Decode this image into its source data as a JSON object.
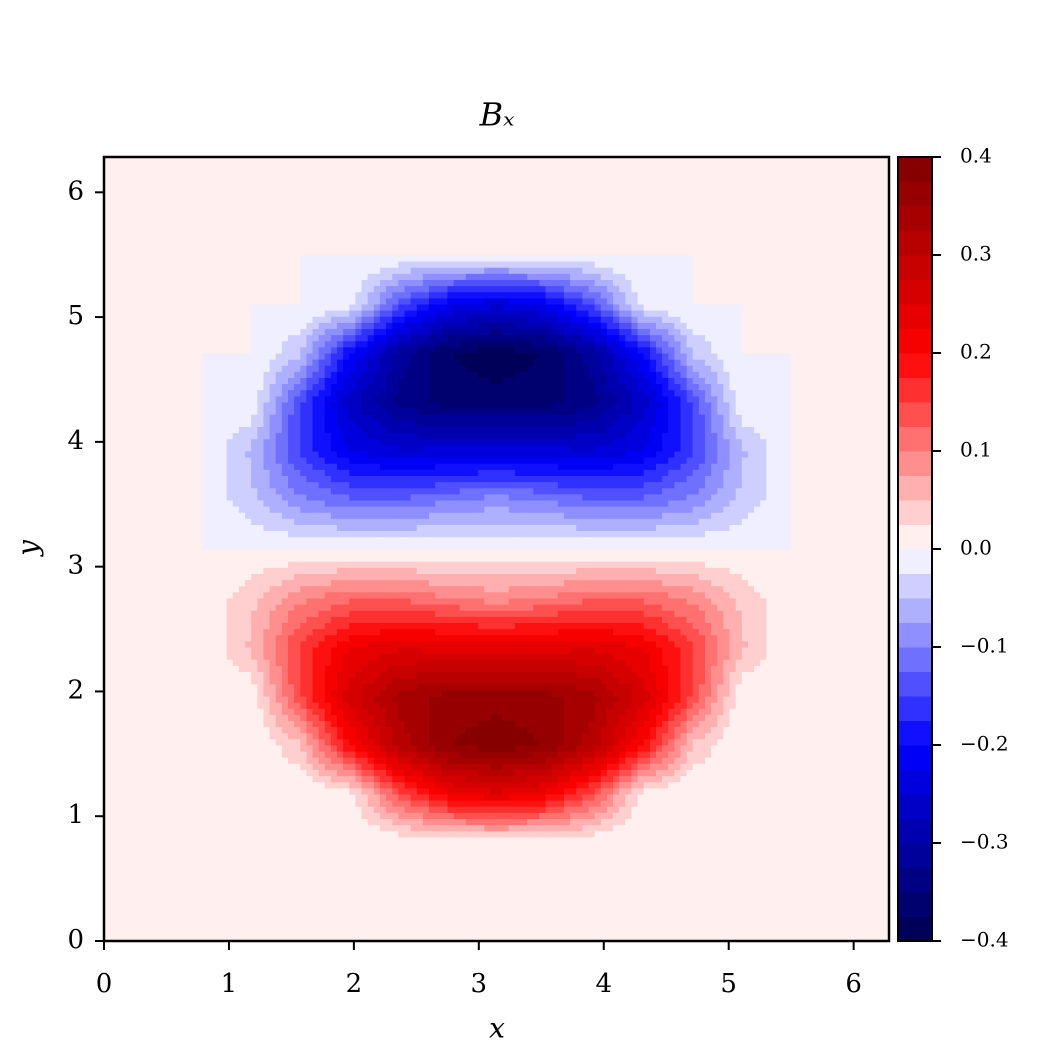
{
  "chart_data": {
    "type": "contour",
    "title": "Bₓ",
    "x_label": "x",
    "y_label": "y",
    "colormap": "seismic",
    "x": [
      0,
      0.393,
      0.785,
      1.178,
      1.571,
      1.963,
      2.356,
      2.749,
      3.142,
      3.534,
      3.927,
      4.32,
      4.712,
      5.105,
      5.498,
      5.89,
      6.283
    ],
    "y": [
      0,
      0.393,
      0.785,
      1.178,
      1.571,
      1.963,
      2.356,
      2.749,
      3.142,
      3.534,
      3.927,
      4.32,
      4.712,
      5.105,
      5.498,
      5.89,
      6.283
    ],
    "z": [
      [
        0,
        0,
        0,
        0,
        0,
        0,
        0,
        0,
        0,
        0,
        0,
        0,
        0,
        0,
        0,
        0,
        0
      ],
      [
        0,
        0,
        0,
        0,
        0,
        0,
        0,
        0,
        0,
        0,
        0,
        0,
        0,
        0,
        0,
        0,
        0
      ],
      [
        0,
        0,
        0,
        0,
        0,
        0,
        0,
        0,
        0,
        0,
        0,
        0,
        0,
        0,
        0,
        0,
        0
      ],
      [
        0,
        0,
        0,
        0,
        0,
        0.007,
        0.135,
        0.218,
        0.246,
        0.218,
        0.135,
        0.007,
        0,
        0,
        0,
        0,
        0
      ],
      [
        0,
        0,
        0,
        0,
        0.045,
        0.197,
        0.309,
        0.373,
        0.392,
        0.373,
        0.309,
        0.197,
        0.045,
        0,
        0,
        0,
        0
      ],
      [
        0,
        0,
        0,
        0.004,
        0.148,
        0.264,
        0.333,
        0.36,
        0.365,
        0.36,
        0.333,
        0.264,
        0.148,
        0.004,
        0,
        0,
        0
      ],
      [
        0,
        0,
        0,
        0.054,
        0.155,
        0.222,
        0.246,
        0.241,
        0.235,
        0.241,
        0.246,
        0.222,
        0.155,
        0.054,
        0,
        0,
        0
      ],
      [
        0,
        0,
        0,
        0.044,
        0.093,
        0.12,
        0.121,
        0.103,
        0.088,
        0.103,
        0.121,
        0.12,
        0.093,
        0.044,
        0,
        0,
        0
      ],
      [
        0,
        0,
        0,
        0,
        0,
        0,
        0,
        0,
        0,
        0,
        0,
        0,
        0,
        0,
        0,
        0,
        0
      ],
      [
        0,
        0,
        0,
        -0.044,
        -0.093,
        -0.12,
        -0.121,
        -0.103,
        -0.088,
        -0.103,
        -0.121,
        -0.12,
        -0.093,
        -0.044,
        0,
        0,
        0
      ],
      [
        0,
        0,
        0,
        -0.054,
        -0.155,
        -0.222,
        -0.246,
        -0.241,
        -0.235,
        -0.241,
        -0.246,
        -0.222,
        -0.155,
        -0.054,
        0,
        0,
        0
      ],
      [
        0,
        0,
        0,
        -0.004,
        -0.148,
        -0.264,
        -0.333,
        -0.36,
        -0.365,
        -0.36,
        -0.333,
        -0.264,
        -0.148,
        -0.004,
        0,
        0,
        0
      ],
      [
        0,
        0,
        0,
        0,
        -0.045,
        -0.197,
        -0.309,
        -0.373,
        -0.392,
        -0.373,
        -0.309,
        -0.197,
        -0.045,
        0,
        0,
        0,
        0
      ],
      [
        0,
        0,
        0,
        0,
        0,
        -0.007,
        -0.135,
        -0.218,
        -0.246,
        -0.218,
        -0.135,
        -0.007,
        0,
        0,
        0,
        0,
        0
      ],
      [
        0,
        0,
        0,
        0,
        0,
        0,
        0,
        0,
        0,
        0,
        0,
        0,
        0,
        0,
        0,
        0,
        0
      ],
      [
        0,
        0,
        0,
        0,
        0,
        0,
        0,
        0,
        0,
        0,
        0,
        0,
        0,
        0,
        0,
        0,
        0
      ],
      [
        0,
        0,
        0,
        0,
        0,
        0,
        0,
        0,
        0,
        0,
        0,
        0,
        0,
        0,
        0,
        0,
        0
      ]
    ],
    "xlim": [
      0,
      6.283
    ],
    "ylim": [
      0,
      6.283
    ],
    "xticks": [
      0,
      1,
      2,
      3,
      4,
      5,
      6
    ],
    "yticks": [
      0,
      1,
      2,
      3,
      4,
      5,
      6
    ],
    "zlim": [
      -0.4,
      0.4
    ],
    "zticks": [
      {
        "value": -0.4,
        "label": "−0.4"
      },
      {
        "value": -0.3,
        "label": "−0.3"
      },
      {
        "value": -0.2,
        "label": "−0.2"
      },
      {
        "value": -0.1,
        "label": "−0.1"
      },
      {
        "value": 0,
        "label": "0.0"
      },
      0.1,
      0.2,
      0.3,
      0.4
    ]
  }
}
